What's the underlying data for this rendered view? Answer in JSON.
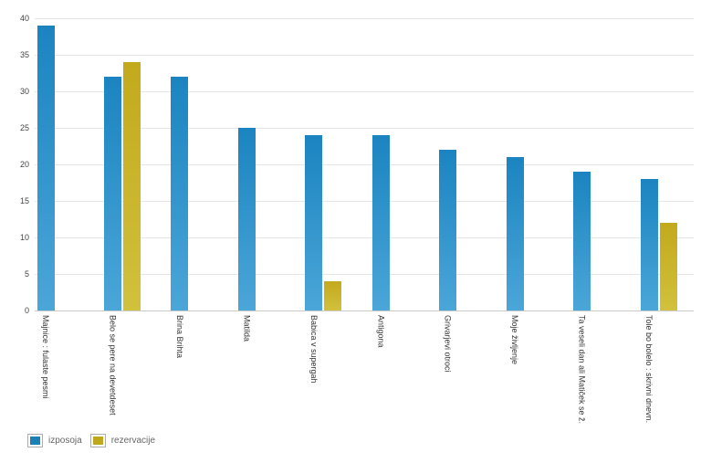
{
  "chart_data": {
    "type": "bar",
    "title": "",
    "xlabel": "",
    "ylabel": "",
    "categories": [
      "Majnice : fulaste pesmi",
      "Belo se pere na devetdeset",
      "Brina Brihta",
      "Matilda",
      "Babica v supergah",
      "Antigona",
      "Grivarjevi otroci",
      "Moje življenje",
      "Ta veseli dan ali Matiček se ž.",
      "Tole bo bolelo : skrivni dnevn."
    ],
    "series": [
      {
        "name": "izposoja",
        "color_top": "#1b84c0",
        "color_bottom": "#4ba6d8",
        "legend_color": "#1a80b6",
        "values": [
          39,
          32,
          32,
          25,
          24,
          24,
          22,
          21,
          19,
          18
        ]
      },
      {
        "name": "rezervacije",
        "color_top": "#c3a91c",
        "color_bottom": "#d1c13c",
        "legend_color": "#c0a81e",
        "values": [
          0,
          34,
          0,
          0,
          4,
          0,
          0,
          0,
          0,
          12
        ]
      }
    ],
    "y_ticks": [
      0,
      5,
      10,
      15,
      20,
      25,
      30,
      35,
      40
    ],
    "ylim": [
      0,
      40
    ],
    "grid": true,
    "legend_position": "bottom-left",
    "zero_values_hidden": true
  }
}
